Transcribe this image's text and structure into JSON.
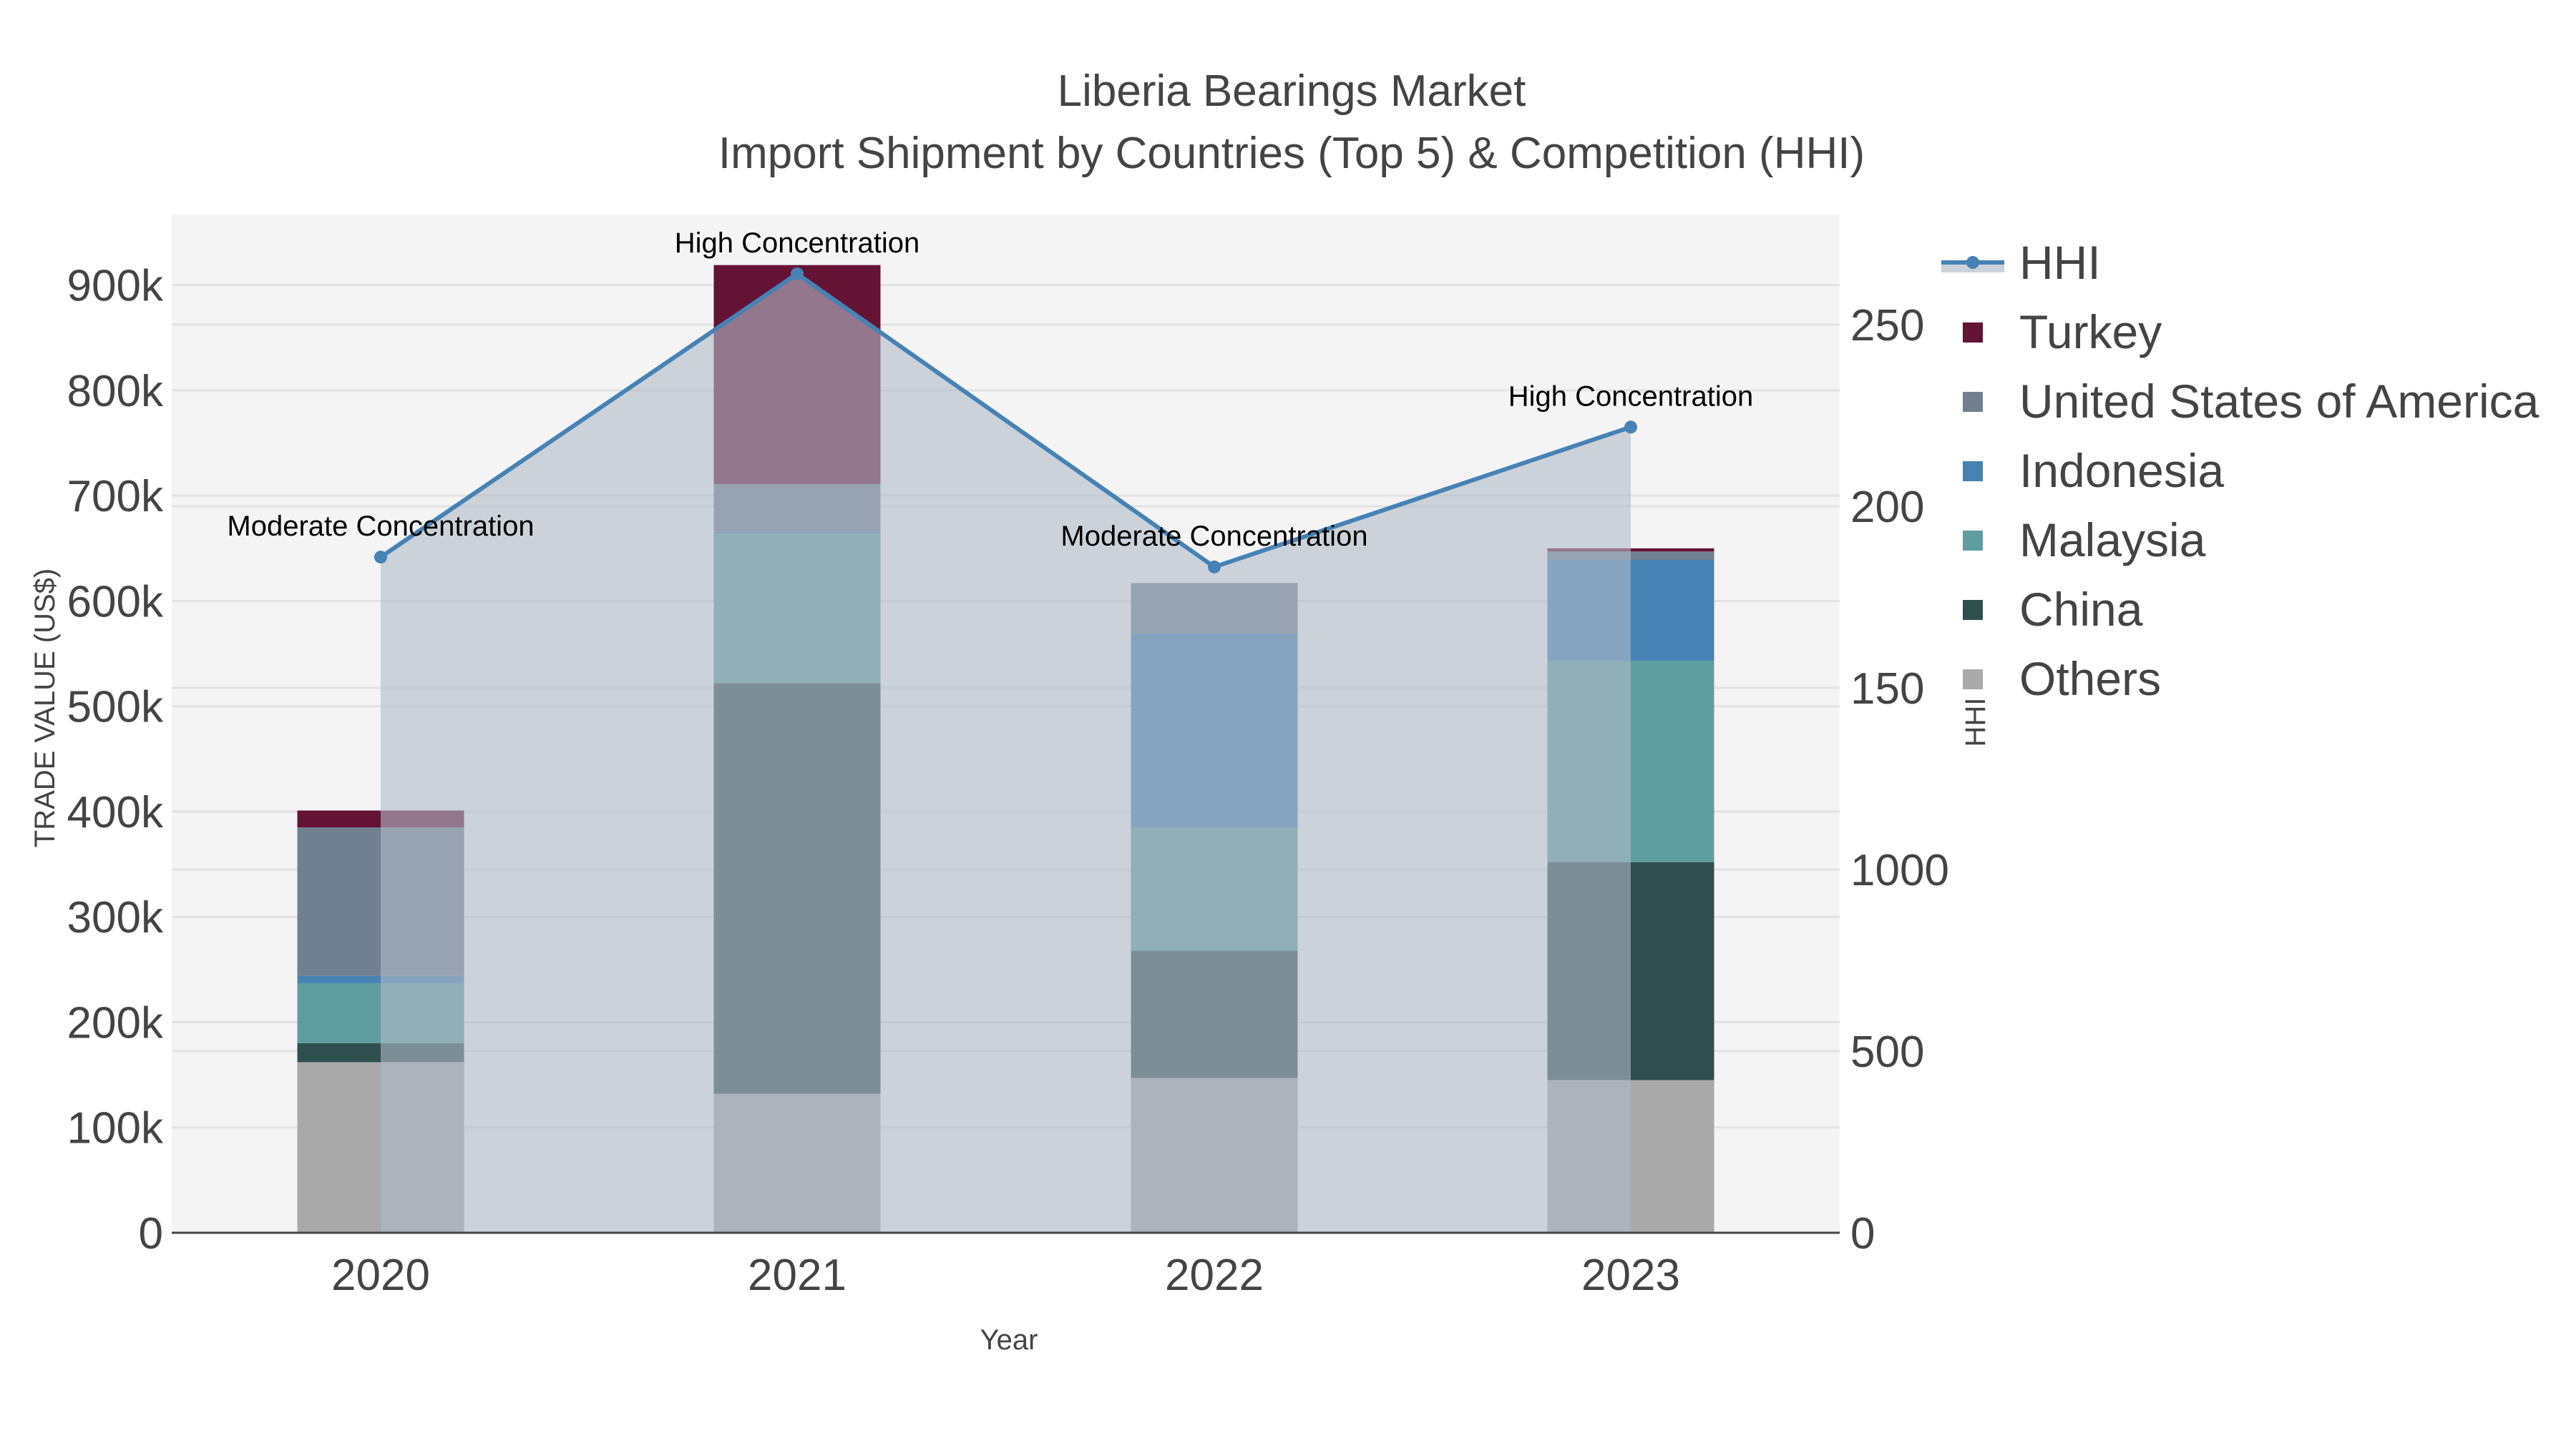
{
  "title": {
    "line1": "Liberia Bearings Market",
    "line2": "Import Shipment by Countries (Top 5) & Competition (HHI)"
  },
  "axes": {
    "x_title": "Year",
    "y_left_title": "TRADE VALUE (US$)",
    "y_right_title": "HHI",
    "y_left_ticks": [
      "0",
      "100k",
      "200k",
      "300k",
      "400k",
      "500k",
      "600k",
      "700k",
      "800k",
      "900k"
    ],
    "y_right_ticks": [
      "0",
      "500",
      "1000",
      "150",
      "200",
      "250"
    ],
    "x_ticks": [
      "2020",
      "2021",
      "2022",
      "2023"
    ]
  },
  "legend": {
    "items": [
      {
        "label": "HHI",
        "type": "line",
        "color": "#4682B4"
      },
      {
        "label": "Turkey",
        "type": "box",
        "color": "#641335"
      },
      {
        "label": "United States of America",
        "type": "box",
        "color": "#708090"
      },
      {
        "label": "Indonesia",
        "type": "box",
        "color": "#4682B4"
      },
      {
        "label": "Malaysia",
        "type": "box",
        "color": "#5F9EA0"
      },
      {
        "label": "China",
        "type": "box",
        "color": "#2F4F4F"
      },
      {
        "label": "Others",
        "type": "box",
        "color": "#A9A9A9"
      }
    ]
  },
  "annotations": [
    {
      "year": "2020",
      "text": "Moderate Concentration"
    },
    {
      "year": "2021",
      "text": "High Concentration"
    },
    {
      "year": "2022",
      "text": "Moderate Concentration"
    },
    {
      "year": "2023",
      "text": "High Concentration"
    }
  ],
  "colors": {
    "plot_bg": "#F4F4F4",
    "grid": "#E2E2E2",
    "hhi_line": "#4682B4",
    "hhi_fill": "rgba(176,186,200,0.6)",
    "axis_line": "#444444"
  },
  "chart_data": {
    "type": "bar",
    "title": "Liberia Bearings Market — Import Shipment by Countries (Top 5) & Competition (HHI)",
    "xlabel": "Year",
    "ylabel": "TRADE VALUE (US$)",
    "y2label": "HHI",
    "categories": [
      "2020",
      "2021",
      "2022",
      "2023"
    ],
    "barmode": "stack",
    "ylim": [
      0,
      967000
    ],
    "y2lim": [
      0,
      2800
    ],
    "grid": true,
    "legend_position": "right",
    "series": [
      {
        "name": "Others",
        "color": "#A9A9A9",
        "values": [
          162000,
          132000,
          147000,
          145000
        ]
      },
      {
        "name": "China",
        "color": "#2F4F4F",
        "values": [
          18000,
          390000,
          121000,
          207000
        ]
      },
      {
        "name": "Malaysia",
        "color": "#5F9EA0",
        "values": [
          57000,
          142000,
          117000,
          191000
        ]
      },
      {
        "name": "Indonesia",
        "color": "#4682B4",
        "values": [
          7000,
          2000,
          184000,
          96000
        ]
      },
      {
        "name": "United States of America",
        "color": "#708090",
        "values": [
          141000,
          45000,
          48000,
          8000
        ]
      },
      {
        "name": "Turkey",
        "color": "#641335",
        "values": [
          16000,
          208000,
          0,
          3000
        ]
      }
    ],
    "line_series": {
      "name": "HHI",
      "axis": "y2",
      "type": "line+area",
      "color": "#4682B4",
      "values": [
        1860,
        2640,
        1833,
        2218
      ]
    },
    "annotations": [
      "Moderate Concentration",
      "High Concentration",
      "Moderate Concentration",
      "High Concentration"
    ]
  }
}
